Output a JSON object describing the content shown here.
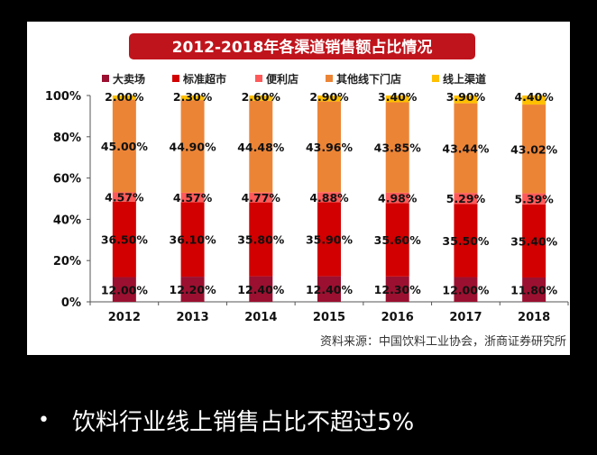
{
  "chart_data": {
    "type": "bar",
    "stacked": true,
    "title": "2012-2018年各渠道销售额占比情况",
    "categories": [
      "2012",
      "2013",
      "2014",
      "2015",
      "2016",
      "2017",
      "2018"
    ],
    "series": [
      {
        "name": "大卖场",
        "color": "#9b1030",
        "values": [
          12.0,
          12.2,
          12.4,
          12.4,
          12.3,
          12.0,
          11.8
        ],
        "labels": [
          "12.00%",
          "12.20%",
          "12.40%",
          "12.40%",
          "12.30%",
          "12.00%",
          "11.80%"
        ]
      },
      {
        "name": "标准超市",
        "color": "#d20000",
        "values": [
          36.5,
          36.1,
          35.8,
          35.9,
          35.6,
          35.5,
          35.4
        ],
        "labels": [
          "36.50%",
          "36.10%",
          "35.80%",
          "35.90%",
          "35.60%",
          "35.50%",
          "35.40%"
        ]
      },
      {
        "name": "便利店",
        "color": "#ff5a5a",
        "values": [
          4.57,
          4.57,
          4.77,
          4.88,
          4.98,
          5.29,
          5.39
        ],
        "labels": [
          "4.57%",
          "4.57%",
          "4.77%",
          "4.88%",
          "4.98%",
          "5.29%",
          "5.39%"
        ]
      },
      {
        "name": "其他线下门店",
        "color": "#ec8436",
        "values": [
          45.0,
          44.9,
          44.48,
          43.96,
          43.85,
          43.44,
          43.02
        ],
        "labels": [
          "45.00%",
          "44.90%",
          "44.48%",
          "43.96%",
          "43.85%",
          "43.44%",
          "43.02%"
        ]
      },
      {
        "name": "线上渠道",
        "color": "#ffc000",
        "values": [
          2.0,
          2.3,
          2.6,
          2.9,
          3.4,
          3.9,
          4.4
        ],
        "labels": [
          "2.00%",
          "2.30%",
          "2.60%",
          "2.90%",
          "3.40%",
          "3.90%",
          "4.40%"
        ]
      }
    ],
    "yticks": [
      "0%",
      "20%",
      "40%",
      "60%",
      "80%",
      "100%"
    ],
    "ylim": [
      0,
      100
    ],
    "legend": "top",
    "grid": false,
    "source": "资料来源：中国饮料工业协会，浙商证券研究所"
  },
  "title_bar_color": "#c0141c",
  "bullet": {
    "symbol": "•",
    "text": "饮料行业线上销售占比不超过5%"
  }
}
